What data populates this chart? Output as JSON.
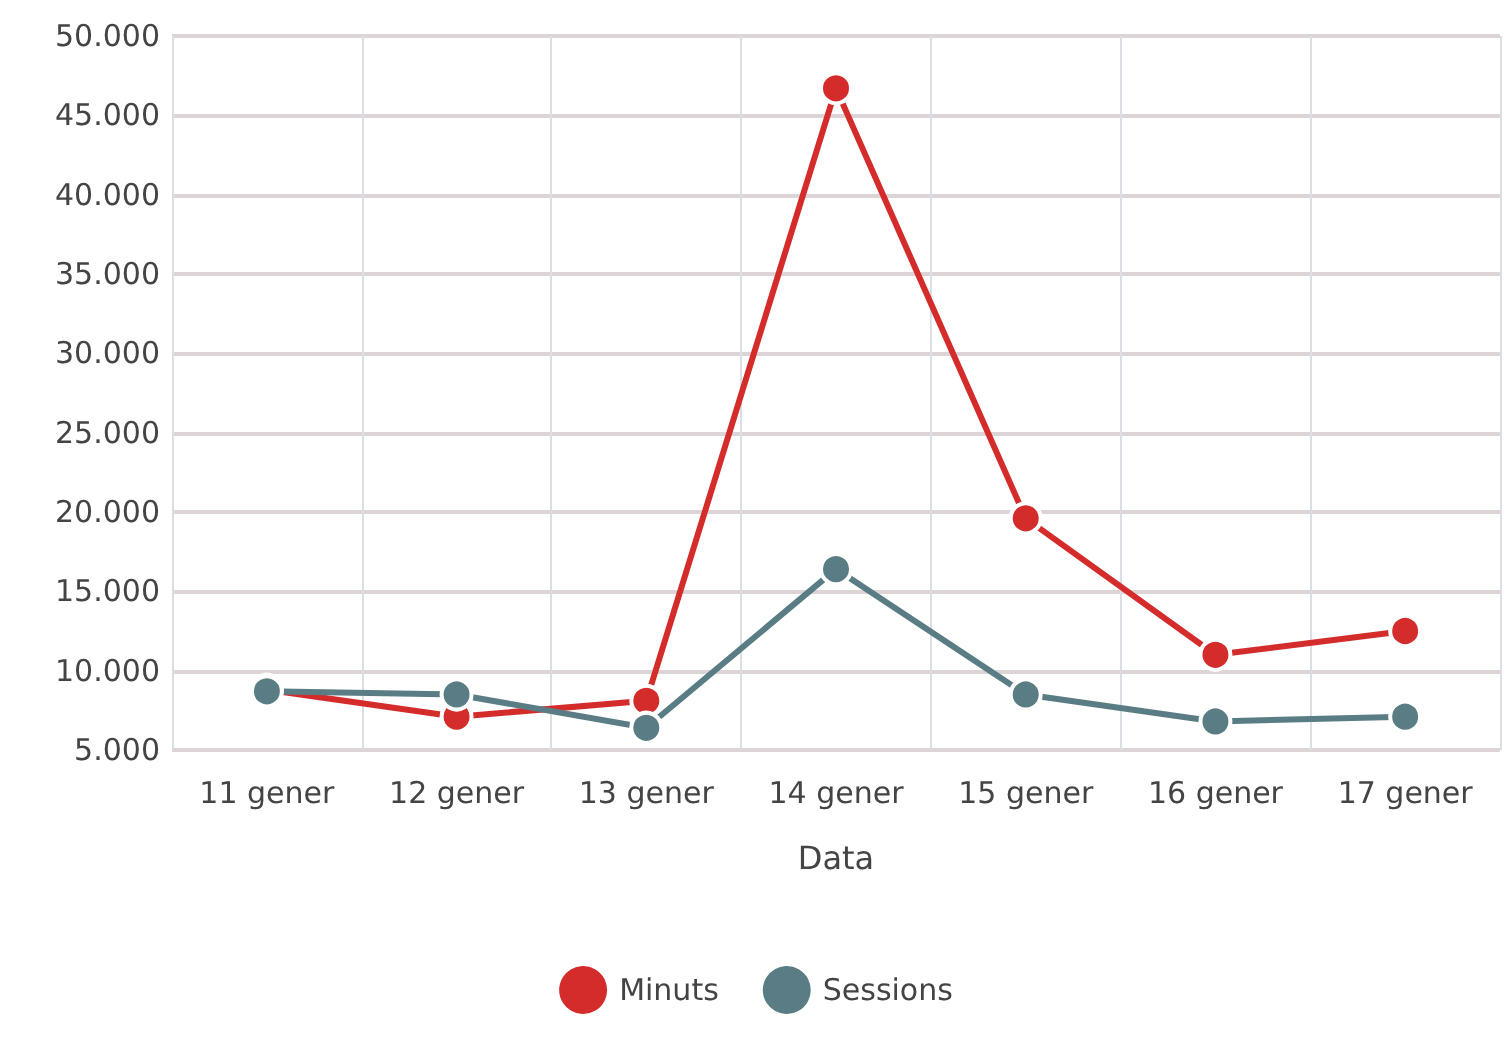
{
  "chart_data": {
    "type": "line",
    "xlabel": "Data",
    "categories": [
      "11 gener",
      "12 gener",
      "13 gener",
      "14 gener",
      "15 gener",
      "16 gener",
      "17 gener"
    ],
    "series": [
      {
        "name": "Minuts",
        "color": "#d42b2b",
        "values": [
          8800,
          7100,
          8100,
          46700,
          19600,
          11000,
          12500
        ]
      },
      {
        "name": "Sessions",
        "color": "#5a7d85",
        "values": [
          8700,
          8500,
          6400,
          16400,
          8500,
          6800,
          7100
        ]
      }
    ],
    "ylim": [
      5000,
      50000
    ],
    "yticks": [
      {
        "value": 5000,
        "label": "5.000"
      },
      {
        "value": 10000,
        "label": "10.000"
      },
      {
        "value": 15000,
        "label": "15.000"
      },
      {
        "value": 20000,
        "label": "20.000"
      },
      {
        "value": 25000,
        "label": "25.000"
      },
      {
        "value": 30000,
        "label": "30.000"
      },
      {
        "value": 35000,
        "label": "35.000"
      },
      {
        "value": 40000,
        "label": "40.000"
      },
      {
        "value": 45000,
        "label": "45.000"
      },
      {
        "value": 50000,
        "label": "50.000"
      }
    ],
    "grid": true,
    "legend": "bottom",
    "marker": "circle",
    "line_style": "solid"
  }
}
